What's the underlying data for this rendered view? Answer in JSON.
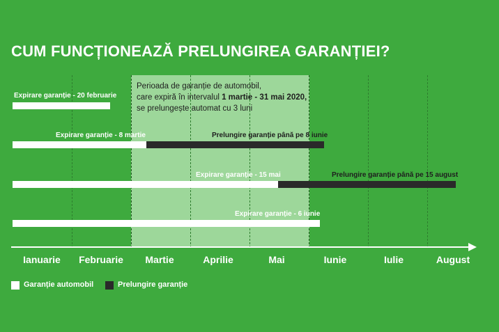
{
  "title": "CUM FUNCȚIONEAZĂ PRELUNGIREA GARANȚIEI?",
  "period_box": {
    "line1": "Perioada de garanție de automobil,",
    "line2_prefix": "care expiră în intervalul ",
    "line2_bold": "1 martie - 31 mai 2020,",
    "line3": "se prelungește automat cu 3 luni"
  },
  "rows": [
    {
      "white_label": "Expirare garanție - 20 februarie",
      "white_end_month": 2.65,
      "dark_label": "",
      "dark_end_month": null
    },
    {
      "white_label": "Expirare garanție - 8 martie",
      "white_end_month": 3.26,
      "dark_label": "Prelungire garanție până pe 8 iunie",
      "dark_end_month": 6.26
    },
    {
      "white_label": "Expirare garanție - 15 mai",
      "white_end_month": 5.48,
      "dark_label": "Prelungire garanție până pe 15 august",
      "dark_end_month": 8.48
    },
    {
      "white_label": "Expirare garanție - 6 iunie",
      "white_end_month": 6.19,
      "dark_label": "",
      "dark_end_month": null
    }
  ],
  "months": [
    "Ianuarie",
    "Februarie",
    "Martie",
    "Aprilie",
    "Mai",
    "Iunie",
    "Iulie",
    "August"
  ],
  "legend": {
    "white": "Garanție automobil",
    "dark": "Prelungire garanție"
  },
  "colors": {
    "background": "#3eaa3e",
    "period_highlight": "#9dd79a",
    "warranty_bar": "#ffffff",
    "extension_bar": "#2a2a2a"
  }
}
